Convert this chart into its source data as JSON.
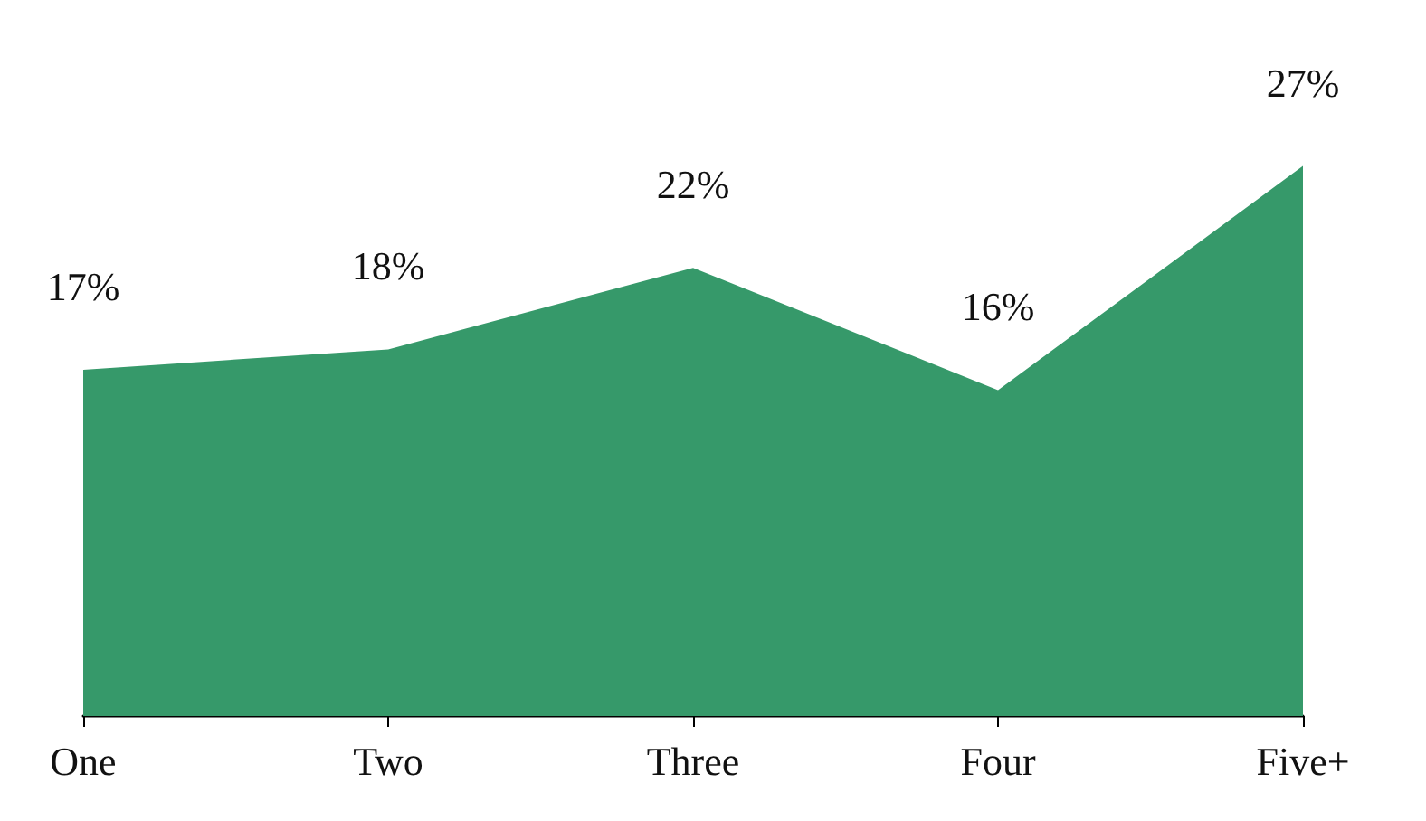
{
  "chart_data": {
    "type": "area",
    "categories": [
      "One",
      "Two",
      "Three",
      "Four",
      "Five+"
    ],
    "series": [
      {
        "color": "#36996a",
        "values": [
          17,
          18,
          22,
          16,
          27
        ],
        "value_labels": [
          "17%",
          "18%",
          "22%",
          "16%",
          "27%"
        ]
      }
    ],
    "grid": false,
    "marker": "none",
    "tick_labels": "x"
  }
}
